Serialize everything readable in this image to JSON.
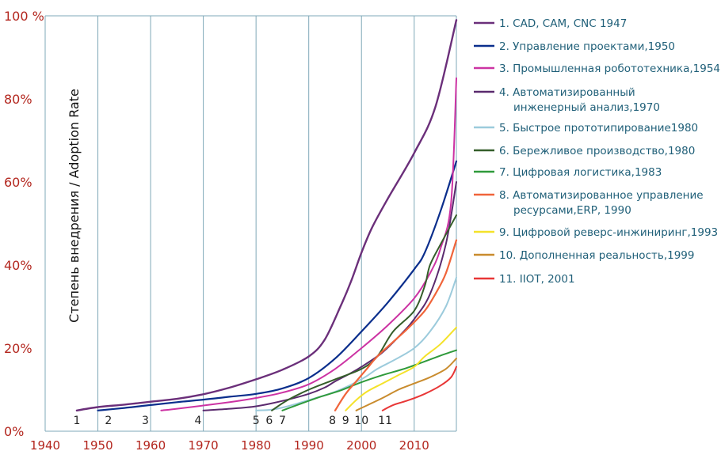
{
  "chart_data": {
    "type": "line",
    "title": "",
    "xlabel": "",
    "ylabel": "Степень внедрения / Adoption Rate",
    "xlim": [
      1940,
      2018
    ],
    "ylim": [
      0,
      100
    ],
    "x_ticks": [
      "1940",
      "1950",
      "1960",
      "1970",
      "1980",
      "1990",
      "2000",
      "2010"
    ],
    "y_ticks": [
      "0%",
      "20%",
      "40%",
      "60%",
      "80%",
      "100 %"
    ],
    "grid": "vertical",
    "legend_position": "right",
    "markers": [
      {
        "label": "1",
        "year": 1946
      },
      {
        "label": "2",
        "year": 1952
      },
      {
        "label": "3",
        "year": 1959
      },
      {
        "label": "4",
        "year": 1969
      },
      {
        "label": "5",
        "year": 1980
      },
      {
        "label": "6",
        "year": 1982.5
      },
      {
        "label": "7",
        "year": 1985
      },
      {
        "label": "8",
        "year": 1994.5
      },
      {
        "label": "9",
        "year": 1997
      },
      {
        "label": "10",
        "year": 2000
      },
      {
        "label": "11",
        "year": 2004.5
      }
    ],
    "series": [
      {
        "name": "1. CAD, CAM, CNC  1947",
        "color": "#6b2f7a",
        "lw": 2.4,
        "points": [
          [
            1946,
            5
          ],
          [
            1950,
            5.8
          ],
          [
            1955,
            6.4
          ],
          [
            1960,
            7.1
          ],
          [
            1965,
            7.8
          ],
          [
            1970,
            8.9
          ],
          [
            1975,
            10.5
          ],
          [
            1980,
            12.5
          ],
          [
            1985,
            14.8
          ],
          [
            1990,
            18
          ],
          [
            1993,
            22
          ],
          [
            1996,
            30
          ],
          [
            1998,
            36
          ],
          [
            2000,
            43
          ],
          [
            2002,
            49
          ],
          [
            2005,
            56
          ],
          [
            2010,
            67
          ],
          [
            2014,
            78
          ],
          [
            2018,
            99
          ]
        ]
      },
      {
        "name": "2. Управление проектами,1950",
        "color": "#0a2e8c",
        "lw": 2.2,
        "points": [
          [
            1950,
            5
          ],
          [
            1955,
            5.6
          ],
          [
            1960,
            6.3
          ],
          [
            1965,
            7
          ],
          [
            1970,
            7.6
          ],
          [
            1975,
            8.3
          ],
          [
            1980,
            9
          ],
          [
            1985,
            10.3
          ],
          [
            1990,
            12.8
          ],
          [
            1995,
            17.5
          ],
          [
            2000,
            24
          ],
          [
            2005,
            31
          ],
          [
            2010,
            39
          ],
          [
            2012,
            43
          ],
          [
            2015,
            53
          ],
          [
            2018,
            65
          ]
        ]
      },
      {
        "name": "3. Промышленная робототехника,1954",
        "color": "#cc33a3",
        "lw": 2.0,
        "points": [
          [
            1962,
            5
          ],
          [
            1965,
            5.4
          ],
          [
            1970,
            6.2
          ],
          [
            1975,
            7
          ],
          [
            1980,
            8
          ],
          [
            1985,
            9.3
          ],
          [
            1990,
            11.3
          ],
          [
            1995,
            15
          ],
          [
            2000,
            20
          ],
          [
            2005,
            25.5
          ],
          [
            2010,
            32
          ],
          [
            2013,
            38
          ],
          [
            2015,
            44
          ],
          [
            2017,
            55
          ],
          [
            2018,
            85
          ]
        ]
      },
      {
        "name": "4. Автоматизированный инженерный анализ,1970",
        "color": "#5a2a6e",
        "lw": 2.0,
        "points": [
          [
            1970,
            5
          ],
          [
            1975,
            5.4
          ],
          [
            1980,
            6
          ],
          [
            1985,
            7.3
          ],
          [
            1990,
            9
          ],
          [
            1993,
            10.5
          ],
          [
            1995,
            12
          ],
          [
            1998,
            14
          ],
          [
            2000,
            15.5
          ],
          [
            2004,
            19
          ],
          [
            2008,
            24
          ],
          [
            2010,
            27
          ],
          [
            2013,
            33
          ],
          [
            2016,
            45
          ],
          [
            2018,
            60
          ]
        ]
      },
      {
        "name": "5. Быстрое прототипирование1980",
        "color": "#9ccbdc",
        "lw": 2.0,
        "points": [
          [
            1980,
            5
          ],
          [
            1983,
            5.2
          ],
          [
            1986,
            6
          ],
          [
            1990,
            7.5
          ],
          [
            1995,
            9.5
          ],
          [
            2000,
            12.5
          ],
          [
            2003,
            15
          ],
          [
            2006,
            17
          ],
          [
            2010,
            20
          ],
          [
            2013,
            24
          ],
          [
            2016,
            30
          ],
          [
            2018,
            37
          ]
        ]
      },
      {
        "name": "6. Бережливое производство,1980",
        "color": "#355e2a",
        "lw": 2.0,
        "points": [
          [
            1983,
            5
          ],
          [
            1986,
            7.5
          ],
          [
            1990,
            10
          ],
          [
            1995,
            12.5
          ],
          [
            2000,
            15
          ],
          [
            2003,
            18
          ],
          [
            2006,
            24
          ],
          [
            2010,
            29
          ],
          [
            2012,
            35
          ],
          [
            2013,
            40
          ],
          [
            2015,
            45
          ],
          [
            2018,
            52
          ]
        ]
      },
      {
        "name": "7. Цифровая логистика,1983",
        "color": "#2f9a3b",
        "lw": 2.0,
        "points": [
          [
            1985,
            5
          ],
          [
            1988,
            6.4
          ],
          [
            1992,
            8.2
          ],
          [
            1996,
            9.8
          ],
          [
            2000,
            11.8
          ],
          [
            2004,
            13.5
          ],
          [
            2008,
            15
          ],
          [
            2012,
            16.8
          ],
          [
            2015,
            18.2
          ],
          [
            2018,
            19.5
          ]
        ]
      },
      {
        "name": "8. Автоматизированное управление ресурсами,ERP, 1990",
        "color": "#f0643a",
        "lw": 2.2,
        "points": [
          [
            1995,
            5
          ],
          [
            1997,
            9
          ],
          [
            1999,
            12
          ],
          [
            2001,
            15
          ],
          [
            2003,
            18
          ],
          [
            2006,
            21.5
          ],
          [
            2009,
            25
          ],
          [
            2012,
            29
          ],
          [
            2014,
            33
          ],
          [
            2016,
            38
          ],
          [
            2018,
            46
          ]
        ]
      },
      {
        "name": "9. Цифровой реверс-инжиниринг,1993",
        "color": "#f4e22a",
        "lw": 2.0,
        "points": [
          [
            1997,
            5
          ],
          [
            1999,
            7.5
          ],
          [
            2001,
            9.5
          ],
          [
            2004,
            11.5
          ],
          [
            2007,
            13.5
          ],
          [
            2010,
            15.5
          ],
          [
            2012,
            18
          ],
          [
            2015,
            21
          ],
          [
            2018,
            25
          ]
        ]
      },
      {
        "name": "10. Дополненная реальность,1999",
        "color": "#c98c2e",
        "lw": 2.0,
        "points": [
          [
            1999,
            5
          ],
          [
            2001,
            6.2
          ],
          [
            2004,
            8
          ],
          [
            2007,
            10
          ],
          [
            2010,
            11.5
          ],
          [
            2013,
            13
          ],
          [
            2016,
            15
          ],
          [
            2018,
            17.5
          ]
        ]
      },
      {
        "name": "11. IIOT, 2001",
        "color": "#e83737",
        "lw": 2.0,
        "points": [
          [
            2004,
            5
          ],
          [
            2006,
            6.3
          ],
          [
            2009,
            7.5
          ],
          [
            2012,
            9
          ],
          [
            2015,
            11
          ],
          [
            2017,
            13
          ],
          [
            2018,
            15.5
          ]
        ]
      }
    ]
  },
  "legend": [
    {
      "lines": [
        "1. CAD, CAM, CNC  1947"
      ],
      "color": "#6b2f7a"
    },
    {
      "lines": [
        "2. Управление проектами,1950"
      ],
      "color": "#0a2e8c"
    },
    {
      "lines": [
        "3. Промышленная робототехника,1954"
      ],
      "color": "#cc33a3"
    },
    {
      "lines": [
        "4. Автоматизированный",
        "инженерный анализ,1970"
      ],
      "color": "#5a2a6e"
    },
    {
      "lines": [
        "5. Быстрое прототипирование1980"
      ],
      "color": "#9ccbdc"
    },
    {
      "lines": [
        "6. Бережливое производство,1980"
      ],
      "color": "#355e2a"
    },
    {
      "lines": [
        "7. Цифровая логистика,1983"
      ],
      "color": "#2f9a3b"
    },
    {
      "lines": [
        "8. Автоматизированное управление",
        "ресурсами,ERP, 1990"
      ],
      "color": "#f0643a"
    },
    {
      "lines": [
        "9. Цифровой реверс-инжиниринг,1993"
      ],
      "color": "#f4e22a"
    },
    {
      "lines": [
        "10. Дополненная реальность,1999"
      ],
      "color": "#c98c2e"
    },
    {
      "lines": [
        "11. IIOT, 2001"
      ],
      "color": "#e83737"
    }
  ]
}
